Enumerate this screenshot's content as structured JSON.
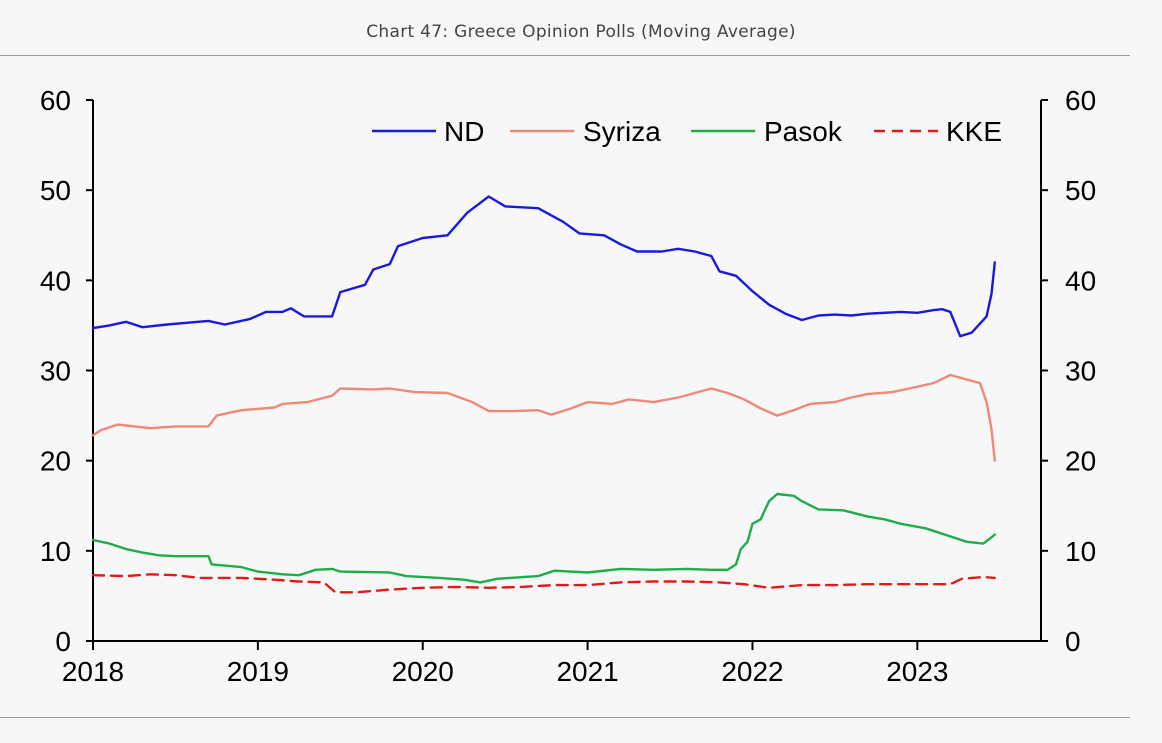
{
  "title": "Chart 47: Greece Opinion Polls (Moving Average)",
  "chart_data": {
    "type": "line",
    "title": "",
    "xlabel": "",
    "ylabel": "",
    "xlim": [
      2018.0,
      2023.75
    ],
    "ylim": [
      0,
      60
    ],
    "x_ticks": [
      "2018",
      "2019",
      "2020",
      "2021",
      "2022",
      "2023"
    ],
    "y_ticks_left": [
      "0",
      "10",
      "20",
      "30",
      "40",
      "50",
      "60"
    ],
    "y_ticks_right": [
      "0",
      "10",
      "20",
      "30",
      "40",
      "50",
      "60"
    ],
    "grid": false,
    "legend": "top-right",
    "series": [
      {
        "name": "ND",
        "color": "#1a1adc",
        "dash": "solid",
        "points": [
          [
            2018.0,
            34.7
          ],
          [
            2018.1,
            35.0
          ],
          [
            2018.2,
            35.4
          ],
          [
            2018.3,
            34.8
          ],
          [
            2018.45,
            35.1
          ],
          [
            2018.7,
            35.5
          ],
          [
            2018.8,
            35.1
          ],
          [
            2018.95,
            35.7
          ],
          [
            2019.05,
            36.5
          ],
          [
            2019.15,
            36.5
          ],
          [
            2019.2,
            36.9
          ],
          [
            2019.28,
            36.0
          ],
          [
            2019.45,
            36.0
          ],
          [
            2019.5,
            38.7
          ],
          [
            2019.65,
            39.5
          ],
          [
            2019.7,
            41.2
          ],
          [
            2019.8,
            41.8
          ],
          [
            2019.85,
            43.8
          ],
          [
            2020.0,
            44.7
          ],
          [
            2020.15,
            45.0
          ],
          [
            2020.27,
            47.5
          ],
          [
            2020.4,
            49.3
          ],
          [
            2020.5,
            48.2
          ],
          [
            2020.7,
            48.0
          ],
          [
            2020.85,
            46.5
          ],
          [
            2020.95,
            45.2
          ],
          [
            2021.1,
            45.0
          ],
          [
            2021.2,
            44.0
          ],
          [
            2021.3,
            43.2
          ],
          [
            2021.45,
            43.2
          ],
          [
            2021.55,
            43.5
          ],
          [
            2021.65,
            43.2
          ],
          [
            2021.75,
            42.7
          ],
          [
            2021.8,
            41.0
          ],
          [
            2021.9,
            40.5
          ],
          [
            2022.0,
            38.8
          ],
          [
            2022.1,
            37.3
          ],
          [
            2022.2,
            36.3
          ],
          [
            2022.3,
            35.6
          ],
          [
            2022.4,
            36.1
          ],
          [
            2022.5,
            36.2
          ],
          [
            2022.6,
            36.1
          ],
          [
            2022.7,
            36.3
          ],
          [
            2022.9,
            36.5
          ],
          [
            2023.0,
            36.4
          ],
          [
            2023.1,
            36.7
          ],
          [
            2023.15,
            36.8
          ],
          [
            2023.2,
            36.5
          ],
          [
            2023.26,
            33.8
          ],
          [
            2023.33,
            34.2
          ],
          [
            2023.38,
            35.2
          ],
          [
            2023.42,
            36.0
          ],
          [
            2023.45,
            38.5
          ],
          [
            2023.47,
            42.0
          ]
        ]
      },
      {
        "name": "Syriza",
        "color": "#f0887a",
        "dash": "solid",
        "points": [
          [
            2018.0,
            22.8
          ],
          [
            2018.05,
            23.4
          ],
          [
            2018.15,
            24.0
          ],
          [
            2018.35,
            23.6
          ],
          [
            2018.5,
            23.8
          ],
          [
            2018.7,
            23.8
          ],
          [
            2018.75,
            25.0
          ],
          [
            2018.9,
            25.6
          ],
          [
            2019.1,
            25.9
          ],
          [
            2019.15,
            26.3
          ],
          [
            2019.3,
            26.5
          ],
          [
            2019.45,
            27.2
          ],
          [
            2019.5,
            28.0
          ],
          [
            2019.7,
            27.9
          ],
          [
            2019.8,
            28.0
          ],
          [
            2019.95,
            27.6
          ],
          [
            2020.15,
            27.5
          ],
          [
            2020.3,
            26.5
          ],
          [
            2020.4,
            25.5
          ],
          [
            2020.55,
            25.5
          ],
          [
            2020.7,
            25.6
          ],
          [
            2020.78,
            25.1
          ],
          [
            2020.9,
            25.8
          ],
          [
            2021.0,
            26.5
          ],
          [
            2021.15,
            26.3
          ],
          [
            2021.25,
            26.8
          ],
          [
            2021.4,
            26.5
          ],
          [
            2021.55,
            27.0
          ],
          [
            2021.75,
            28.0
          ],
          [
            2021.85,
            27.5
          ],
          [
            2021.95,
            26.8
          ],
          [
            2022.05,
            25.8
          ],
          [
            2022.15,
            25.0
          ],
          [
            2022.25,
            25.6
          ],
          [
            2022.35,
            26.3
          ],
          [
            2022.5,
            26.5
          ],
          [
            2022.6,
            27.0
          ],
          [
            2022.7,
            27.4
          ],
          [
            2022.85,
            27.6
          ],
          [
            2022.95,
            28.0
          ],
          [
            2023.1,
            28.6
          ],
          [
            2023.2,
            29.5
          ],
          [
            2023.3,
            29.0
          ],
          [
            2023.38,
            28.6
          ],
          [
            2023.42,
            26.5
          ],
          [
            2023.45,
            23.5
          ],
          [
            2023.47,
            20.0
          ]
        ]
      },
      {
        "name": "Pasok",
        "color": "#1fac4c",
        "dash": "solid",
        "points": [
          [
            2018.0,
            11.2
          ],
          [
            2018.1,
            10.8
          ],
          [
            2018.2,
            10.2
          ],
          [
            2018.3,
            9.8
          ],
          [
            2018.4,
            9.5
          ],
          [
            2018.5,
            9.4
          ],
          [
            2018.7,
            9.4
          ],
          [
            2018.72,
            8.5
          ],
          [
            2018.9,
            8.2
          ],
          [
            2019.0,
            7.7
          ],
          [
            2019.15,
            7.4
          ],
          [
            2019.25,
            7.3
          ],
          [
            2019.35,
            7.9
          ],
          [
            2019.45,
            8.0
          ],
          [
            2019.5,
            7.7
          ],
          [
            2019.8,
            7.6
          ],
          [
            2019.9,
            7.2
          ],
          [
            2020.1,
            7.0
          ],
          [
            2020.25,
            6.8
          ],
          [
            2020.35,
            6.5
          ],
          [
            2020.45,
            6.9
          ],
          [
            2020.7,
            7.2
          ],
          [
            2020.8,
            7.8
          ],
          [
            2021.0,
            7.6
          ],
          [
            2021.2,
            8.0
          ],
          [
            2021.4,
            7.9
          ],
          [
            2021.6,
            8.0
          ],
          [
            2021.75,
            7.9
          ],
          [
            2021.85,
            7.9
          ],
          [
            2021.9,
            8.5
          ],
          [
            2021.93,
            10.2
          ],
          [
            2021.97,
            11.0
          ],
          [
            2022.0,
            13.0
          ],
          [
            2022.05,
            13.5
          ],
          [
            2022.1,
            15.5
          ],
          [
            2022.15,
            16.3
          ],
          [
            2022.25,
            16.1
          ],
          [
            2022.3,
            15.5
          ],
          [
            2022.4,
            14.6
          ],
          [
            2022.55,
            14.5
          ],
          [
            2022.7,
            13.8
          ],
          [
            2022.8,
            13.5
          ],
          [
            2022.9,
            13.0
          ],
          [
            2023.05,
            12.5
          ],
          [
            2023.2,
            11.6
          ],
          [
            2023.3,
            11.0
          ],
          [
            2023.4,
            10.8
          ],
          [
            2023.45,
            11.5
          ],
          [
            2023.47,
            11.8
          ]
        ]
      },
      {
        "name": "KKE",
        "color": "#e41a1a",
        "dash": "dashed",
        "points": [
          [
            2018.0,
            7.3
          ],
          [
            2018.2,
            7.2
          ],
          [
            2018.35,
            7.4
          ],
          [
            2018.5,
            7.3
          ],
          [
            2018.65,
            7.0
          ],
          [
            2018.9,
            7.0
          ],
          [
            2019.1,
            6.8
          ],
          [
            2019.25,
            6.6
          ],
          [
            2019.4,
            6.5
          ],
          [
            2019.47,
            5.4
          ],
          [
            2019.6,
            5.4
          ],
          [
            2019.8,
            5.7
          ],
          [
            2020.0,
            5.9
          ],
          [
            2020.2,
            6.0
          ],
          [
            2020.4,
            5.9
          ],
          [
            2020.6,
            6.0
          ],
          [
            2020.8,
            6.2
          ],
          [
            2021.0,
            6.2
          ],
          [
            2021.2,
            6.5
          ],
          [
            2021.4,
            6.6
          ],
          [
            2021.6,
            6.6
          ],
          [
            2021.8,
            6.5
          ],
          [
            2021.95,
            6.3
          ],
          [
            2022.1,
            5.9
          ],
          [
            2022.3,
            6.2
          ],
          [
            2022.5,
            6.2
          ],
          [
            2022.7,
            6.3
          ],
          [
            2022.9,
            6.3
          ],
          [
            2023.1,
            6.3
          ],
          [
            2023.2,
            6.3
          ],
          [
            2023.27,
            6.9
          ],
          [
            2023.4,
            7.1
          ],
          [
            2023.47,
            7.0
          ]
        ]
      }
    ]
  }
}
